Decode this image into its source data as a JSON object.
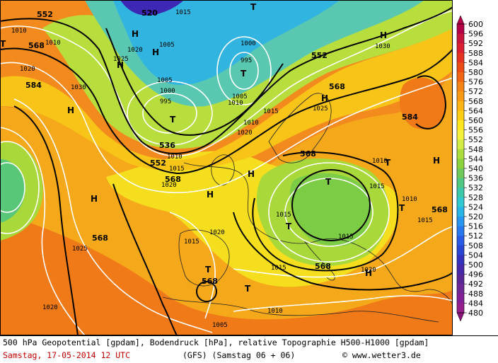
{
  "map": {
    "geopotential_labels": [
      "552",
      "520",
      "568",
      "552",
      "568",
      "536",
      "552",
      "568",
      "584",
      "568",
      "584",
      "568",
      "568",
      "568",
      "568"
    ],
    "pressure_labels": [
      "1010",
      "1015",
      "1020",
      "1025",
      "1020",
      "1005",
      "1000",
      "995",
      "1010",
      "1005",
      "1000",
      "995",
      "1030",
      "1030",
      "1010",
      "1015",
      "1025",
      "1020",
      "1005",
      "1010",
      "1015",
      "1020",
      "1015",
      "1010",
      "1015",
      "1015",
      "1020",
      "1015",
      "1010",
      "1020",
      "1025",
      "1020",
      "1005",
      "1010",
      "1015",
      "1015",
      "1010"
    ],
    "high_symbol": "H",
    "low_symbol": "T",
    "colors": {
      "contour_geopotential": "#000000",
      "contour_pressure": "#ffffff",
      "land_border": "#222222"
    }
  },
  "legend": {
    "values": [
      "600",
      "596",
      "592",
      "588",
      "584",
      "580",
      "576",
      "572",
      "568",
      "564",
      "560",
      "556",
      "552",
      "548",
      "544",
      "540",
      "536",
      "532",
      "528",
      "524",
      "520",
      "516",
      "512",
      "508",
      "504",
      "500",
      "496",
      "492",
      "488",
      "484",
      "480"
    ],
    "colors": [
      "#b40046",
      "#c8143c",
      "#dc1e32",
      "#e63223",
      "#eb4b14",
      "#f06414",
      "#f58214",
      "#f89a14",
      "#fab414",
      "#fccd14",
      "#ffe61e",
      "#f5f03c",
      "#d2eb46",
      "#aadc3c",
      "#8cd23c",
      "#6ec85a",
      "#50c882",
      "#3cc8aa",
      "#32c8d2",
      "#28b4e6",
      "#2896f0",
      "#2878f0",
      "#285ae6",
      "#2846d2",
      "#3232be",
      "#4628aa",
      "#5a2896",
      "#6e2896",
      "#821e96",
      "#961e8c",
      "#8c1478"
    ]
  },
  "footer": {
    "line1": "500 hPa Geopotential [gpdam], Bodendruck [hPa], relative Topographie H500-H1000 [gpdam]",
    "date": "Samstag, 17-05-2014  12 UTC",
    "model": "(GFS)  (Samstag 06 + 06)",
    "credit": "© www.wetter3.de"
  }
}
